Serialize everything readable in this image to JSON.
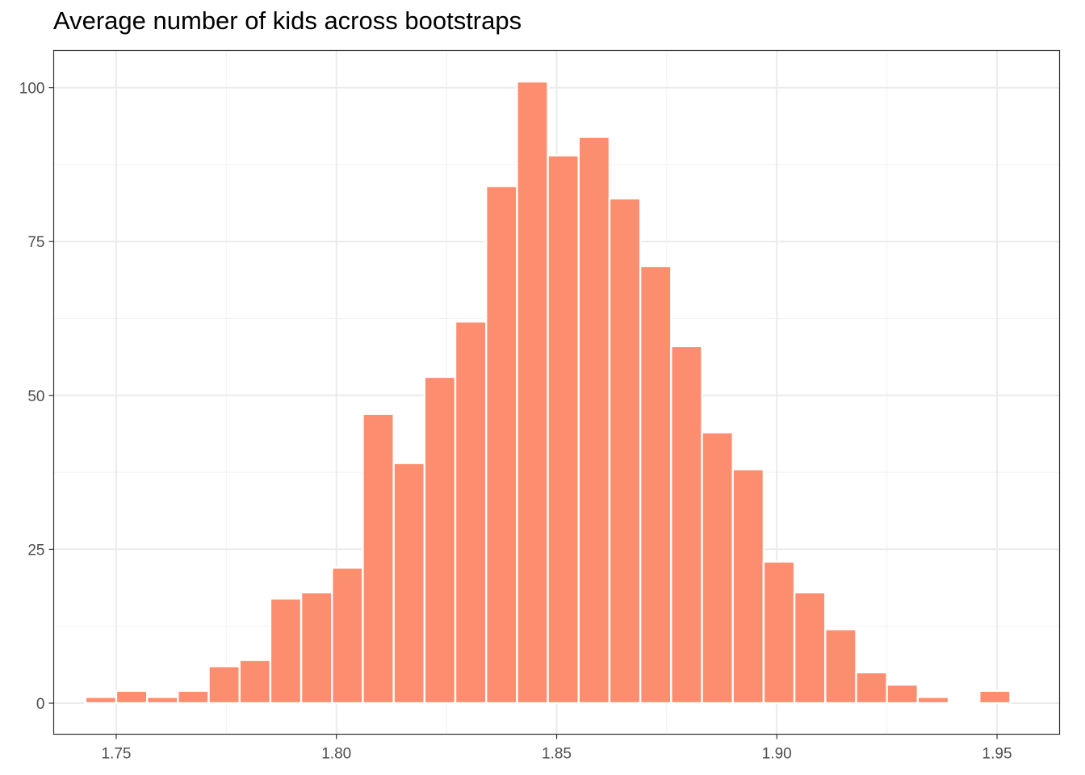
{
  "chart_data": {
    "type": "bar",
    "title": "Average number of kids across bootstraps",
    "xlabel": "",
    "ylabel": "",
    "x_ticks": [
      "1.75",
      "1.80",
      "1.85",
      "1.90",
      "1.95"
    ],
    "x_tick_values": [
      1.75,
      1.8,
      1.85,
      1.9,
      1.95
    ],
    "y_ticks": [
      "0",
      "25",
      "50",
      "75",
      "100"
    ],
    "y_tick_values": [
      0,
      25,
      50,
      75,
      100
    ],
    "xlim": [
      1.7358,
      1.9642
    ],
    "ylim": [
      -5.05,
      106.05
    ],
    "bin_width": 0.007,
    "bin_centers": [
      1.7465,
      1.7535,
      1.7605,
      1.7675,
      1.7745,
      1.7815,
      1.7885,
      1.7955,
      1.8025,
      1.8095,
      1.8165,
      1.8235,
      1.8305,
      1.8375,
      1.8445,
      1.8515,
      1.8585,
      1.8655,
      1.8725,
      1.8795,
      1.8865,
      1.8935,
      1.9005,
      1.9075,
      1.9145,
      1.9215,
      1.9285,
      1.9355,
      1.9425,
      1.9495
    ],
    "values": [
      1,
      2,
      1,
      2,
      6,
      7,
      17,
      18,
      22,
      47,
      39,
      53,
      62,
      84,
      101,
      89,
      92,
      82,
      71,
      58,
      44,
      38,
      23,
      18,
      12,
      5,
      3,
      1,
      0,
      2
    ],
    "bar_color": "#FC8D6E",
    "bar_outline": "#ffffff",
    "panel_border": "#333333",
    "grid_major": "#EBEBEB",
    "grid_minor": "#F3F3F3",
    "grid": true,
    "legend": "none"
  }
}
